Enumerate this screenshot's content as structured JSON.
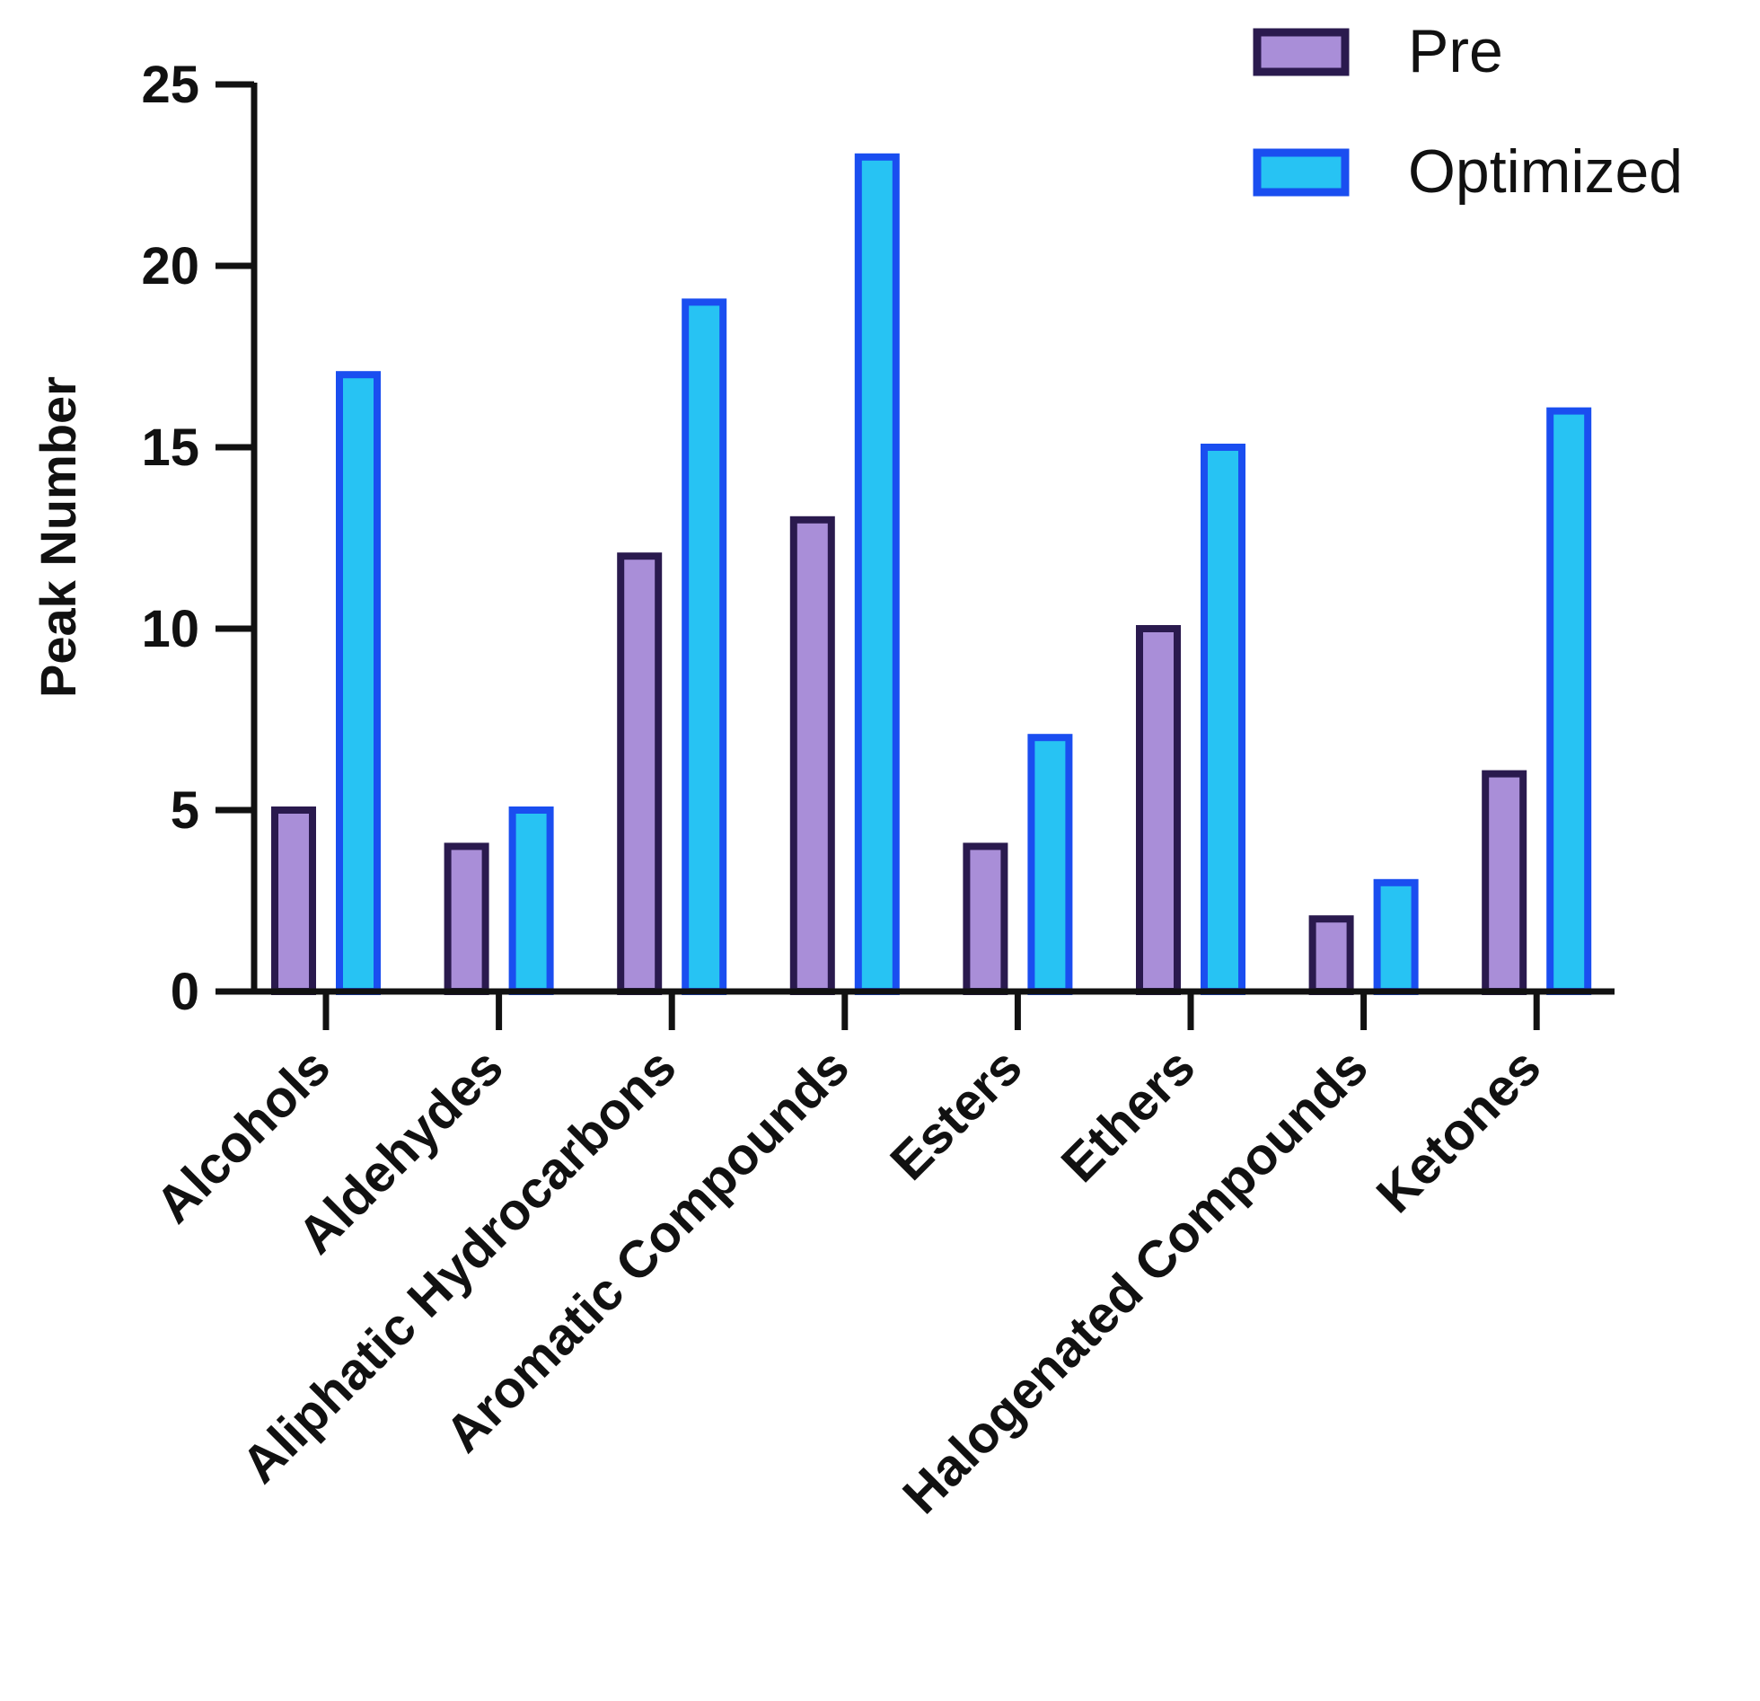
{
  "chart_data": {
    "type": "bar",
    "title": "",
    "xlabel": "",
    "ylabel": "Peak Number",
    "ylim": [
      0,
      25
    ],
    "yticks": [
      "0",
      "5",
      "10",
      "15",
      "20",
      "25"
    ],
    "grid": false,
    "legend_position": "top-right",
    "categories": [
      "Alcohols",
      "Aldehydes",
      "Aliphatic Hydrocarbons",
      "Aromatic Compounds",
      "Esters",
      "Ethers",
      "Halogenated Compounds",
      "Ketones"
    ],
    "series": [
      {
        "name": "Pre",
        "values": [
          5,
          4,
          12,
          13,
          4,
          10,
          2,
          6
        ],
        "fill": "#a98ed8",
        "stroke": "#2a1a4e"
      },
      {
        "name": "Optimized",
        "values": [
          17,
          5,
          19,
          23,
          7,
          15,
          3,
          16
        ],
        "fill": "#27c3f3",
        "stroke": "#1a4ef0"
      }
    ]
  }
}
